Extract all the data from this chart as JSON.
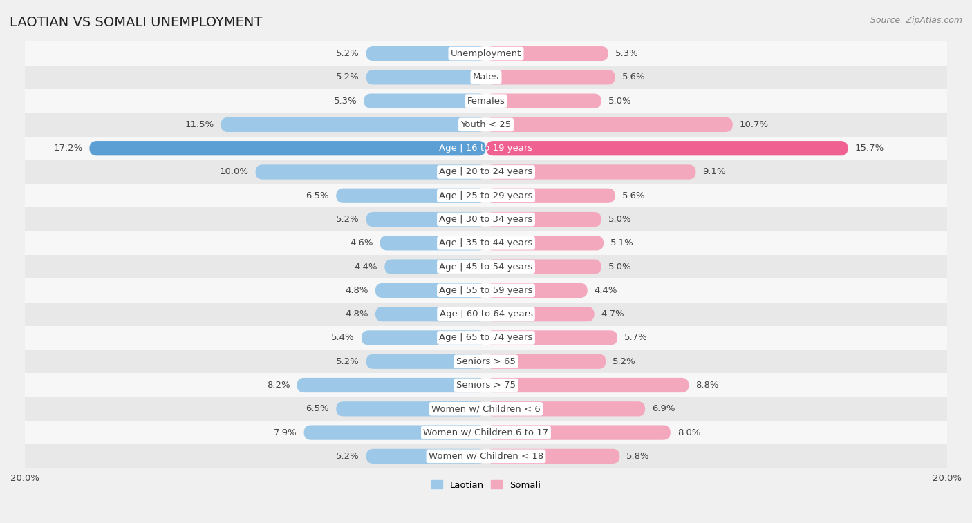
{
  "title": "LAOTIAN VS SOMALI UNEMPLOYMENT",
  "source": "Source: ZipAtlas.com",
  "categories": [
    "Unemployment",
    "Males",
    "Females",
    "Youth < 25",
    "Age | 16 to 19 years",
    "Age | 20 to 24 years",
    "Age | 25 to 29 years",
    "Age | 30 to 34 years",
    "Age | 35 to 44 years",
    "Age | 45 to 54 years",
    "Age | 55 to 59 years",
    "Age | 60 to 64 years",
    "Age | 65 to 74 years",
    "Seniors > 65",
    "Seniors > 75",
    "Women w/ Children < 6",
    "Women w/ Children 6 to 17",
    "Women w/ Children < 18"
  ],
  "laotian": [
    5.2,
    5.2,
    5.3,
    11.5,
    17.2,
    10.0,
    6.5,
    5.2,
    4.6,
    4.4,
    4.8,
    4.8,
    5.4,
    5.2,
    8.2,
    6.5,
    7.9,
    5.2
  ],
  "somali": [
    5.3,
    5.6,
    5.0,
    10.7,
    15.7,
    9.1,
    5.6,
    5.0,
    5.1,
    5.0,
    4.4,
    4.7,
    5.7,
    5.2,
    8.8,
    6.9,
    8.0,
    5.8
  ],
  "laotian_color": "#9DC8E8",
  "somali_color": "#F4A8BE",
  "laotian_color_highlight": "#5B9FD4",
  "somali_color_highlight": "#F06090",
  "label_color": "#444444",
  "bg_color": "#f0f0f0",
  "row_bg_light": "#f7f7f7",
  "row_bg_dark": "#e8e8e8",
  "axis_max": 20.0,
  "bar_height": 0.62,
  "label_fontsize": 9.5,
  "value_fontsize": 9.5,
  "title_fontsize": 14,
  "source_fontsize": 9
}
